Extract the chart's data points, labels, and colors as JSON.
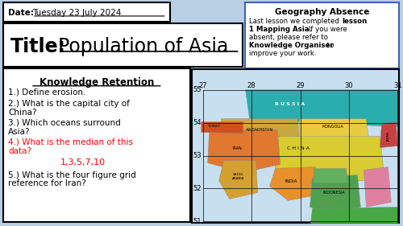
{
  "background_color": "#b8cfe4",
  "date_text": "Date:",
  "date_underline": "Tuesday 23 July 2024",
  "title_bold": "Title: ",
  "title_normal": "Population of Asia",
  "knowledge_title": "Knowledge Retention",
  "q4_answer": "1,3,5,7,10",
  "absence_title": "Geography Absence",
  "map_grid_numbers_x": [
    "27",
    "28",
    "29",
    "30",
    "31"
  ],
  "map_grid_numbers_y": [
    "55",
    "54",
    "53",
    "52",
    "51"
  ]
}
